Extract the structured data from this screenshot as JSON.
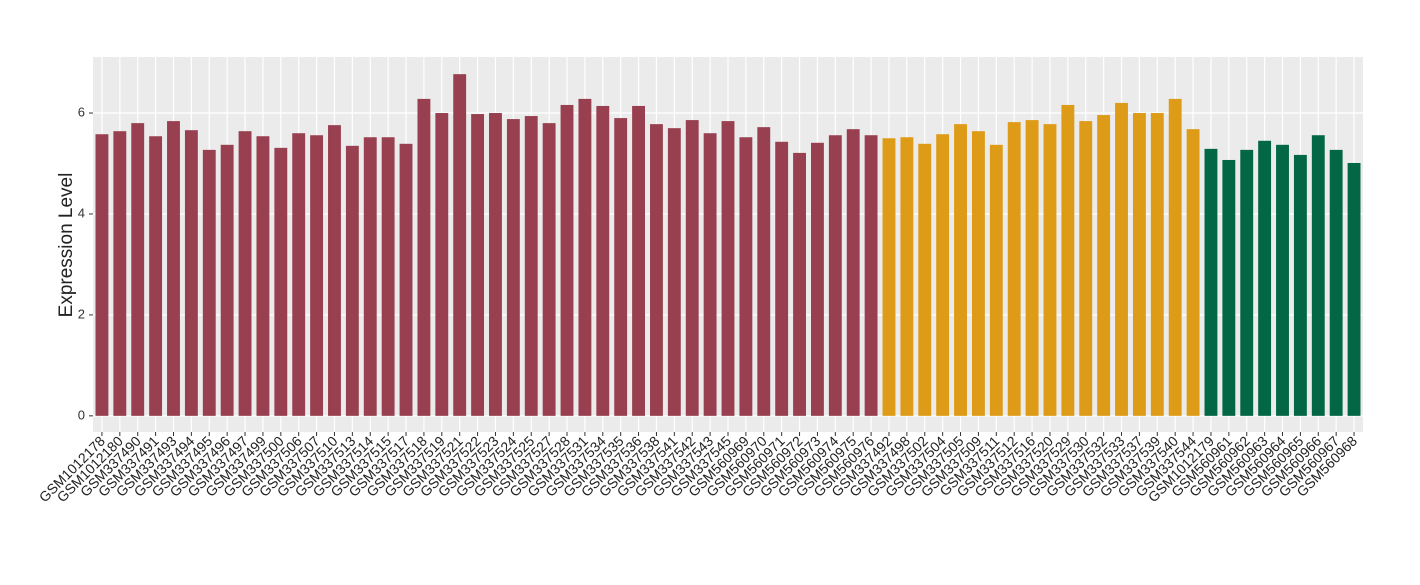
{
  "chart_data": {
    "type": "bar",
    "y_label": "Expression Level",
    "categories": [
      "GSM1012178",
      "GSM1012180",
      "GSM337490",
      "GSM337491",
      "GSM337493",
      "GSM337494",
      "GSM337495",
      "GSM337496",
      "GSM337497",
      "GSM337499",
      "GSM337500",
      "GSM337506",
      "GSM337507",
      "GSM337510",
      "GSM337513",
      "GSM337514",
      "GSM337515",
      "GSM337517",
      "GSM337518",
      "GSM337519",
      "GSM337521",
      "GSM337522",
      "GSM337523",
      "GSM337524",
      "GSM337525",
      "GSM337527",
      "GSM337528",
      "GSM337531",
      "GSM337534",
      "GSM337535",
      "GSM337536",
      "GSM337538",
      "GSM337541",
      "GSM337542",
      "GSM337543",
      "GSM337545",
      "GSM560969",
      "GSM560970",
      "GSM560971",
      "GSM560972",
      "GSM560973",
      "GSM560974",
      "GSM560975",
      "GSM560976",
      "GSM337492",
      "GSM337498",
      "GSM337502",
      "GSM337504",
      "GSM337505",
      "GSM337509",
      "GSM337511",
      "GSM337512",
      "GSM337516",
      "GSM337520",
      "GSM337529",
      "GSM337530",
      "GSM337532",
      "GSM337533",
      "GSM337537",
      "GSM337539",
      "GSM337540",
      "GSM337544",
      "GSM1012179",
      "GSM560961",
      "GSM560962",
      "GSM560963",
      "GSM560964",
      "GSM560965",
      "GSM560966",
      "GSM560967",
      "GSM560968"
    ],
    "values": [
      5.58,
      5.64,
      5.8,
      5.54,
      5.84,
      5.66,
      5.27,
      5.37,
      5.64,
      5.54,
      5.31,
      5.6,
      5.56,
      5.76,
      5.35,
      5.52,
      5.52,
      5.39,
      6.28,
      6.0,
      6.77,
      5.98,
      6.0,
      5.88,
      5.94,
      5.8,
      6.16,
      6.28,
      6.14,
      5.9,
      6.14,
      5.78,
      5.7,
      5.86,
      5.6,
      5.84,
      5.52,
      5.72,
      5.43,
      5.21,
      5.41,
      5.56,
      5.68,
      5.56,
      5.5,
      5.52,
      5.39,
      5.58,
      5.78,
      5.64,
      5.37,
      5.82,
      5.86,
      5.78,
      6.16,
      5.84,
      5.96,
      6.2,
      6.0,
      6.0,
      6.28,
      5.68,
      5.29,
      5.07,
      5.27,
      5.45,
      5.37,
      5.17,
      5.56,
      5.27,
      5.01
    ],
    "colors": [
      "#98404f",
      "#98404f",
      "#98404f",
      "#98404f",
      "#98404f",
      "#98404f",
      "#98404f",
      "#98404f",
      "#98404f",
      "#98404f",
      "#98404f",
      "#98404f",
      "#98404f",
      "#98404f",
      "#98404f",
      "#98404f",
      "#98404f",
      "#98404f",
      "#98404f",
      "#98404f",
      "#98404f",
      "#98404f",
      "#98404f",
      "#98404f",
      "#98404f",
      "#98404f",
      "#98404f",
      "#98404f",
      "#98404f",
      "#98404f",
      "#98404f",
      "#98404f",
      "#98404f",
      "#98404f",
      "#98404f",
      "#98404f",
      "#98404f",
      "#98404f",
      "#98404f",
      "#98404f",
      "#98404f",
      "#98404f",
      "#98404f",
      "#98404f",
      "#de9b17",
      "#de9b17",
      "#de9b17",
      "#de9b17",
      "#de9b17",
      "#de9b17",
      "#de9b17",
      "#de9b17",
      "#de9b17",
      "#de9b17",
      "#de9b17",
      "#de9b17",
      "#de9b17",
      "#de9b17",
      "#de9b17",
      "#de9b17",
      "#de9b17",
      "#de9b17",
      "#036645",
      "#036645",
      "#036645",
      "#036645",
      "#036645",
      "#036645",
      "#036645",
      "#036645",
      "#036645"
    ],
    "ylim": [
      -0.32,
      7.11
    ],
    "yticks": [
      0,
      2,
      4,
      6
    ],
    "grid": true
  }
}
